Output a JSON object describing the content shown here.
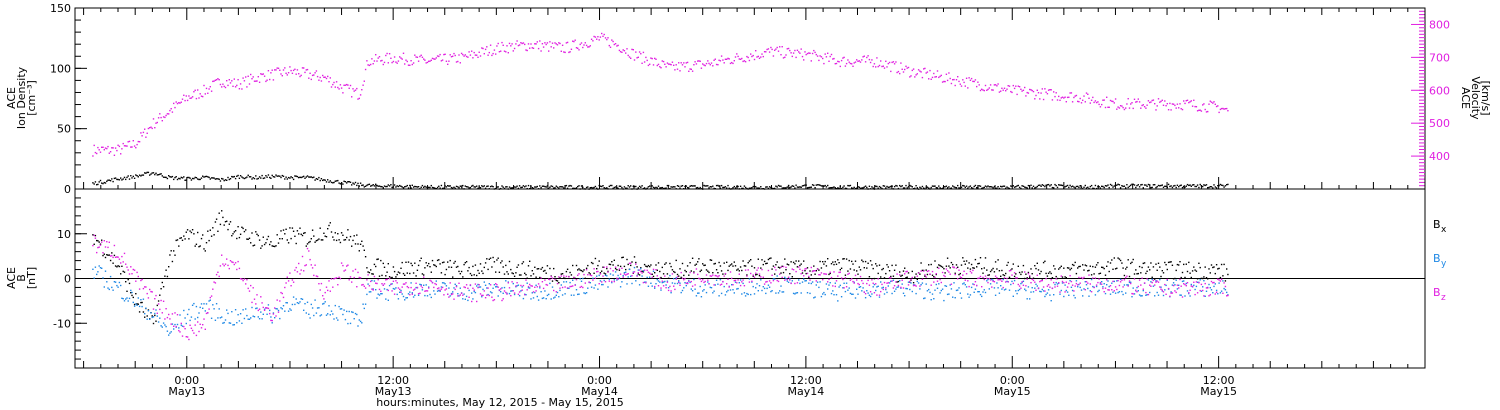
{
  "chart_data": [
    {
      "type": "scatter",
      "panel": "top",
      "ylabel_left": [
        "ACE",
        "Ion Density",
        "[cm⁻³]"
      ],
      "ylim_left": [
        0,
        150
      ],
      "yticks_left": [
        "0",
        "50",
        "100",
        "150"
      ],
      "ylabel_right": [
        "ACE",
        "Velocity",
        "[km/s]"
      ],
      "ylim_right": [
        300,
        850
      ],
      "yticks_right": [
        "400",
        "500",
        "600",
        "700",
        "800"
      ],
      "series": [
        {
          "color": "#000000",
          "axis": "left",
          "points": [
            [
              -5.5,
              5
            ],
            [
              -4,
              9
            ],
            [
              -3,
              11
            ],
            [
              -2,
              14
            ],
            [
              -1,
              10
            ],
            [
              0,
              9
            ],
            [
              1,
              10
            ],
            [
              2,
              8
            ],
            [
              3,
              11
            ],
            [
              4,
              10
            ],
            [
              5,
              11
            ],
            [
              6,
              10
            ],
            [
              7,
              10
            ],
            [
              8,
              8
            ],
            [
              9,
              6
            ],
            [
              10,
              4
            ],
            [
              11,
              3
            ],
            [
              12,
              3
            ],
            [
              14,
              2
            ],
            [
              16,
              2
            ],
            [
              18,
              2
            ],
            [
              20,
              2
            ],
            [
              22,
              2
            ],
            [
              24,
              2
            ],
            [
              26,
              2
            ],
            [
              28,
              2
            ],
            [
              30,
              2
            ],
            [
              32,
              2
            ],
            [
              34,
              2
            ],
            [
              36,
              3
            ],
            [
              38,
              2
            ],
            [
              40,
              2
            ],
            [
              42,
              2
            ],
            [
              44,
              2
            ],
            [
              46,
              2
            ],
            [
              48,
              2
            ],
            [
              50,
              3
            ],
            [
              52,
              2
            ],
            [
              54,
              3
            ],
            [
              56,
              3
            ],
            [
              58,
              3
            ],
            [
              60,
              3
            ],
            [
              60.5,
              3
            ]
          ]
        },
        {
          "color": "#e020e0",
          "axis": "right",
          "points": [
            [
              -5.5,
              420
            ],
            [
              -4,
              420
            ],
            [
              -3,
              440
            ],
            [
              -2,
              500
            ],
            [
              -1,
              540
            ],
            [
              0,
              580
            ],
            [
              1,
              600
            ],
            [
              2,
              630
            ],
            [
              3,
              620
            ],
            [
              4,
              640
            ],
            [
              5,
              650
            ],
            [
              6,
              660
            ],
            [
              7,
              650
            ],
            [
              8,
              640
            ],
            [
              9,
              610
            ],
            [
              10,
              590
            ],
            [
              10.5,
              690
            ],
            [
              12,
              700
            ],
            [
              14,
              690
            ],
            [
              16,
              700
            ],
            [
              18,
              730
            ],
            [
              20,
              740
            ],
            [
              22,
              730
            ],
            [
              24,
              760
            ],
            [
              25,
              740
            ],
            [
              26,
              710
            ],
            [
              27,
              690
            ],
            [
              28,
              670
            ],
            [
              30,
              680
            ],
            [
              32,
              700
            ],
            [
              34,
              720
            ],
            [
              36,
              710
            ],
            [
              38,
              690
            ],
            [
              40,
              690
            ],
            [
              42,
              660
            ],
            [
              44,
              640
            ],
            [
              46,
              620
            ],
            [
              48,
              600
            ],
            [
              50,
              590
            ],
            [
              52,
              580
            ],
            [
              54,
              560
            ],
            [
              56,
              560
            ],
            [
              58,
              560
            ],
            [
              60,
              550
            ],
            [
              60.5,
              540
            ]
          ]
        }
      ]
    },
    {
      "type": "scatter",
      "panel": "bottom",
      "ylabel": [
        "ACE",
        "B",
        "[nT]"
      ],
      "ylim": [
        -20,
        20
      ],
      "yticks": [
        "-10",
        "0",
        "10"
      ],
      "legend": [
        {
          "label": "B",
          "sub": "x",
          "color": "#000000"
        },
        {
          "label": "B",
          "sub": "y",
          "color": "#1e88e5"
        },
        {
          "label": "B",
          "sub": "z",
          "color": "#e020e0"
        }
      ],
      "series": [
        {
          "color": "#000000",
          "points": [
            [
              -5.5,
              10
            ],
            [
              -4,
              3
            ],
            [
              -3,
              -5
            ],
            [
              -2,
              -10
            ],
            [
              -1,
              5
            ],
            [
              0,
              10
            ],
            [
              1,
              8
            ],
            [
              2,
              14
            ],
            [
              3,
              10
            ],
            [
              4,
              9
            ],
            [
              5,
              8
            ],
            [
              6,
              10
            ],
            [
              7,
              9
            ],
            [
              8,
              11
            ],
            [
              9,
              10
            ],
            [
              10,
              8
            ],
            [
              10.5,
              3
            ],
            [
              12,
              2
            ],
            [
              14,
              3
            ],
            [
              16,
              2
            ],
            [
              18,
              3
            ],
            [
              20,
              2
            ],
            [
              22,
              1
            ],
            [
              24,
              3
            ],
            [
              26,
              3
            ],
            [
              28,
              2
            ],
            [
              30,
              3
            ],
            [
              32,
              2
            ],
            [
              34,
              3
            ],
            [
              36,
              2
            ],
            [
              38,
              3
            ],
            [
              40,
              2
            ],
            [
              42,
              1
            ],
            [
              44,
              3
            ],
            [
              46,
              3
            ],
            [
              48,
              2
            ],
            [
              50,
              2
            ],
            [
              52,
              2
            ],
            [
              54,
              3
            ],
            [
              56,
              2
            ],
            [
              58,
              2
            ],
            [
              60,
              2
            ],
            [
              60.5,
              1
            ]
          ]
        },
        {
          "color": "#1e88e5",
          "points": [
            [
              -5.5,
              2
            ],
            [
              -4,
              -2
            ],
            [
              -3,
              -5
            ],
            [
              -2,
              -8
            ],
            [
              -1,
              -12
            ],
            [
              0,
              -8
            ],
            [
              1,
              -6
            ],
            [
              2,
              -8
            ],
            [
              3,
              -9
            ],
            [
              4,
              -7
            ],
            [
              5,
              -8
            ],
            [
              6,
              -5
            ],
            [
              7,
              -7
            ],
            [
              8,
              -6
            ],
            [
              9,
              -8
            ],
            [
              10,
              -10
            ],
            [
              10.5,
              -2
            ],
            [
              12,
              -3
            ],
            [
              14,
              -2
            ],
            [
              16,
              -3
            ],
            [
              18,
              -2
            ],
            [
              20,
              -3
            ],
            [
              22,
              -2
            ],
            [
              24,
              -1
            ],
            [
              26,
              1
            ],
            [
              28,
              -1
            ],
            [
              30,
              -2
            ],
            [
              32,
              -2
            ],
            [
              34,
              -1
            ],
            [
              36,
              -2
            ],
            [
              38,
              -3
            ],
            [
              40,
              -2
            ],
            [
              42,
              -2
            ],
            [
              44,
              -3
            ],
            [
              46,
              -2
            ],
            [
              48,
              -2
            ],
            [
              50,
              -3
            ],
            [
              52,
              -2
            ],
            [
              54,
              -2
            ],
            [
              56,
              -2
            ],
            [
              58,
              -2
            ],
            [
              60,
              -2
            ],
            [
              60.5,
              -2
            ]
          ]
        },
        {
          "color": "#e020e0",
          "points": [
            [
              -5.5,
              8
            ],
            [
              -4,
              6
            ],
            [
              -3,
              0
            ],
            [
              -2,
              -5
            ],
            [
              -1,
              -8
            ],
            [
              0,
              -12
            ],
            [
              1,
              -10
            ],
            [
              2,
              5
            ],
            [
              3,
              2
            ],
            [
              4,
              -5
            ],
            [
              5,
              -8
            ],
            [
              6,
              0
            ],
            [
              7,
              5
            ],
            [
              8,
              -3
            ],
            [
              9,
              2
            ],
            [
              10,
              0
            ],
            [
              10.5,
              -1
            ],
            [
              12,
              -2
            ],
            [
              14,
              -1
            ],
            [
              16,
              -3
            ],
            [
              18,
              -3
            ],
            [
              20,
              -2
            ],
            [
              22,
              -1
            ],
            [
              24,
              1
            ],
            [
              26,
              2
            ],
            [
              28,
              -1
            ],
            [
              30,
              1
            ],
            [
              32,
              0
            ],
            [
              34,
              1
            ],
            [
              36,
              1
            ],
            [
              38,
              0
            ],
            [
              40,
              -2
            ],
            [
              42,
              0
            ],
            [
              44,
              1
            ],
            [
              46,
              0
            ],
            [
              48,
              0
            ],
            [
              50,
              -1
            ],
            [
              52,
              -1
            ],
            [
              54,
              -1
            ],
            [
              56,
              -2
            ],
            [
              58,
              -2
            ],
            [
              60,
              -2
            ],
            [
              60.5,
              -2
            ]
          ]
        }
      ]
    }
  ],
  "xaxis": {
    "range": [
      -6.5,
      72
    ],
    "ticks": [
      {
        "x": 0,
        "time": "0:00",
        "date": "May13"
      },
      {
        "x": 12,
        "time": "12:00",
        "date": "May13"
      },
      {
        "x": 24,
        "time": "0:00",
        "date": "May14"
      },
      {
        "x": 36,
        "time": "12:00",
        "date": "May14"
      },
      {
        "x": 48,
        "time": "0:00",
        "date": "May15"
      },
      {
        "x": 60,
        "time": "12:00",
        "date": "May15"
      }
    ],
    "label": "hours:minutes, May 12, 2015 - May 15, 2015"
  }
}
